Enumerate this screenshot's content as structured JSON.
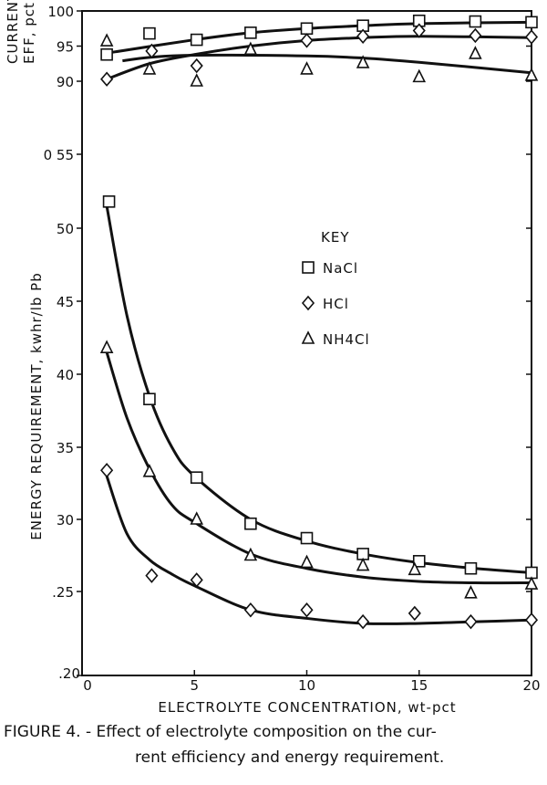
{
  "chart_data": [
    {
      "type": "line",
      "panel": "top",
      "ylabel_lines": [
        "CURRENT",
        "EFF, pct"
      ],
      "yticks": [
        "90",
        "95",
        "100"
      ],
      "ytick_values": [
        90,
        95,
        100
      ],
      "xlim": [
        0,
        20
      ],
      "grid": false,
      "series": [
        {
          "name": "NaCl",
          "marker": "square",
          "x": [
            1.1,
            3,
            5.1,
            7.5,
            10,
            12.5,
            15,
            17.5,
            20
          ],
          "y": [
            93.8,
            96.8,
            95.9,
            96.9,
            97.5,
            97.9,
            98.6,
            98.5,
            98.4
          ],
          "fit_x": [
            1.1,
            5,
            7.5,
            10,
            12.5,
            15,
            20
          ],
          "fit_y": [
            94.0,
            95.9,
            96.9,
            97.5,
            97.9,
            98.2,
            98.4
          ]
        },
        {
          "name": "HCl",
          "marker": "diamond",
          "x": [
            1.1,
            3.1,
            5.1,
            10,
            12.5,
            15,
            17.5,
            20
          ],
          "y": [
            90.3,
            94.3,
            92.2,
            95.8,
            96.4,
            97.2,
            96.5,
            96.3
          ],
          "fit_x": [
            1.1,
            3,
            5,
            7.5,
            10,
            12.5,
            15,
            20
          ],
          "fit_y": [
            90.3,
            92.5,
            93.8,
            95.0,
            95.8,
            96.2,
            96.4,
            96.2
          ]
        },
        {
          "name": "NH4Cl",
          "marker": "triangle",
          "x": [
            1.1,
            3,
            5.1,
            7.5,
            10,
            12.5,
            15,
            17.5,
            20
          ],
          "y": [
            95.7,
            91.7,
            90.0,
            94.5,
            91.7,
            92.6,
            90.6,
            93.9,
            90.8
          ],
          "fit_x": [
            1.8,
            3,
            5,
            10,
            12.5,
            15,
            20
          ],
          "fit_y": [
            92.9,
            93.4,
            93.7,
            93.6,
            93.3,
            92.7,
            91.2
          ]
        }
      ]
    },
    {
      "type": "line",
      "panel": "bottom",
      "ylabel": "ENERGY REQUIREMENT, kwhr/lb Pb",
      "xlabel": "ELECTROLYTE CONCENTRATION, wt-pct",
      "xticks": [
        "0",
        "5",
        "10",
        "15",
        "20"
      ],
      "xtick_values": [
        0,
        5,
        10,
        15,
        20
      ],
      "xlim": [
        0,
        20
      ],
      "yticks": [
        ".20",
        ".25",
        "30",
        "35",
        "40",
        "45",
        "50",
        "0 55"
      ],
      "ytick_values": [
        0.2,
        0.25,
        0.3,
        0.35,
        0.4,
        0.45,
        0.5,
        0.55
      ],
      "ylim": [
        0.2,
        0.55
      ],
      "grid": false,
      "legend": {
        "title": "KEY",
        "placement": "center-right",
        "entries": [
          "NaCl",
          "HCl",
          "NH4Cl"
        ]
      },
      "series": [
        {
          "name": "NaCl",
          "marker": "square",
          "x": [
            1.2,
            3,
            5.1,
            7.5,
            10,
            12.5,
            15,
            17.3,
            20
          ],
          "y": [
            0.518,
            0.383,
            0.329,
            0.297,
            0.287,
            0.276,
            0.271,
            0.266,
            0.263
          ],
          "fit_x": [
            1.1,
            2,
            3,
            4,
            5,
            7.5,
            10,
            12.5,
            15,
            17.5,
            20
          ],
          "fit_y": [
            0.515,
            0.44,
            0.385,
            0.35,
            0.33,
            0.3,
            0.285,
            0.276,
            0.27,
            0.266,
            0.263
          ]
        },
        {
          "name": "HCl",
          "marker": "diamond",
          "x": [
            1.1,
            3.1,
            5.1,
            7.5,
            10,
            12.5,
            14.8,
            17.3,
            20
          ],
          "y": [
            0.334,
            0.261,
            0.258,
            0.239,
            0.239,
            0.232,
            0.237,
            0.232,
            0.233
          ],
          "fit_x": [
            1.1,
            2,
            3,
            4,
            5,
            7.5,
            10,
            12.5,
            15,
            17.5,
            20
          ],
          "fit_y": [
            0.33,
            0.29,
            0.272,
            0.262,
            0.254,
            0.239,
            0.234,
            0.231,
            0.231,
            0.232,
            0.233
          ]
        },
        {
          "name": "NH4Cl",
          "marker": "triangle",
          "x": [
            1.1,
            3,
            5.1,
            7.5,
            10,
            12.5,
            14.8,
            17.3,
            20
          ],
          "y": [
            0.418,
            0.333,
            0.3,
            0.275,
            0.27,
            0.268,
            0.265,
            0.249,
            0.255
          ],
          "fit_x": [
            1.1,
            2,
            3,
            4,
            5,
            7.5,
            10,
            12.5,
            15,
            17.5,
            20
          ],
          "fit_y": [
            0.415,
            0.37,
            0.335,
            0.31,
            0.298,
            0.276,
            0.266,
            0.26,
            0.257,
            0.256,
            0.256
          ]
        }
      ]
    }
  ],
  "caption": {
    "line1": "FIGURE 4. - Effect of electrolyte composition on the cur-",
    "line2": "rent efficiency and energy requirement."
  }
}
